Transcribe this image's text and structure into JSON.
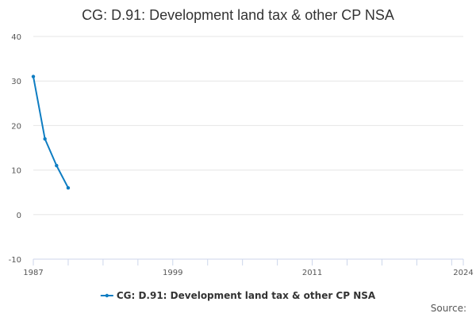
{
  "chart_data": {
    "type": "line",
    "title": "CG: D.91: Development land tax & other CP NSA",
    "xlabel": "",
    "ylabel": "",
    "x_ticks": [
      "1987",
      "1999",
      "2011",
      "2024"
    ],
    "y_ticks": [
      -10,
      0,
      10,
      20,
      30,
      40
    ],
    "xlim": [
      1987,
      2024
    ],
    "ylim": [
      -10,
      40
    ],
    "grid": true,
    "legend_position": "bottom",
    "series": [
      {
        "name": "CG: D.91: Development land tax & other CP NSA",
        "color": "#0e7dc2",
        "x": [
          1987,
          1988,
          1989,
          1990
        ],
        "y": [
          31,
          17,
          11,
          6
        ]
      }
    ]
  },
  "credits": "Source:"
}
